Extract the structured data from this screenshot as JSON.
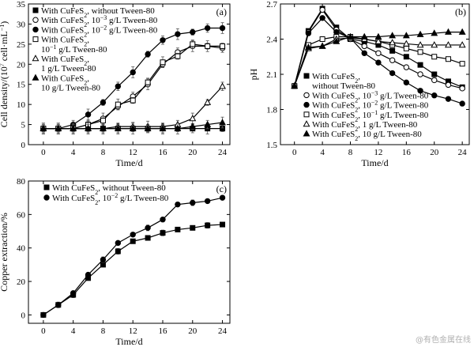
{
  "watermark": "@有色金属在线",
  "chart_data": [
    {
      "id": "a",
      "type": "line",
      "panel_label": "(a)",
      "xlabel": "Time/d",
      "ylabel_prefix": "Cell density/(10",
      "ylabel_sup1": "7",
      "ylabel_mid": " cell·mL",
      "ylabel_sup2": "−1",
      "ylabel_suffix": ")",
      "xlim": [
        -2,
        25
      ],
      "ylim": [
        0,
        35
      ],
      "xticks": [
        "0",
        "4",
        "8",
        "12",
        "16",
        "20",
        "24"
      ],
      "yticks": [
        "0",
        "5",
        "10",
        "15",
        "20",
        "25",
        "30",
        "35"
      ],
      "x": [
        0,
        2,
        4,
        6,
        8,
        10,
        12,
        14,
        16,
        18,
        20,
        22,
        24
      ],
      "legend_position": "top-left",
      "series": [
        {
          "marker": "filled-square",
          "legend_lines": [
            [
              "With CuFeS",
              "2",
              ", without Tween-80"
            ]
          ],
          "values": [
            4.0,
            4.0,
            4.0,
            4.0,
            4.0,
            4.0,
            4.0,
            4.0,
            4.0,
            4.0,
            4.0,
            4.0,
            4.0
          ]
        },
        {
          "marker": "open-circle",
          "legend_lines": [
            [
              "With CuFeS",
              "2",
              ", 10",
              "−3",
              " g/L Tween-80"
            ]
          ],
          "values": [
            4.0,
            4.0,
            4.0,
            5.0,
            6.5,
            9.5,
            12.0,
            15.0,
            20.0,
            23.0,
            24.5,
            24.5,
            24.0
          ]
        },
        {
          "marker": "filled-circle",
          "legend_lines": [
            [
              "With CuFeS",
              "2",
              ", 10",
              "−2",
              " g/L Tween-80"
            ]
          ],
          "values": [
            4.0,
            4.0,
            5.0,
            7.5,
            10.5,
            14.5,
            18.0,
            22.5,
            26.0,
            27.5,
            28.0,
            29.0,
            29.0
          ]
        },
        {
          "marker": "open-square",
          "legend_lines": [
            [
              "With CuFeS",
              "2",
              ","
            ],
            [
              "10",
              "−1",
              " g/L Tween-80"
            ]
          ],
          "values": [
            4.0,
            4.0,
            4.0,
            5.0,
            6.0,
            10.0,
            11.0,
            15.5,
            20.5,
            22.0,
            25.0,
            24.5,
            24.5
          ]
        },
        {
          "marker": "open-triangle",
          "legend_lines": [
            [
              "With CuFeS",
              "2",
              ","
            ],
            [
              "1 g/L Tween-80"
            ]
          ],
          "values": [
            4.0,
            4.0,
            4.0,
            4.0,
            4.0,
            4.5,
            4.5,
            4.5,
            4.5,
            5.0,
            6.5,
            10.5,
            14.5
          ]
        },
        {
          "marker": "filled-triangle",
          "legend_lines": [
            [
              "With CuFeS",
              "2",
              ","
            ],
            [
              "10 g/L Tween-80"
            ]
          ],
          "values": [
            4.0,
            4.0,
            4.0,
            4.0,
            4.0,
            4.0,
            4.0,
            4.0,
            4.0,
            4.0,
            4.5,
            5.0,
            5.5
          ]
        }
      ]
    },
    {
      "id": "b",
      "type": "line",
      "panel_label": "(b)",
      "xlabel": "Time/d",
      "ylabel": "pH",
      "xlim": [
        -2,
        25
      ],
      "ylim": [
        1.5,
        2.7
      ],
      "xticks": [
        "0",
        "4",
        "8",
        "12",
        "16",
        "20",
        "24"
      ],
      "yticks": [
        "1.5",
        "1.8",
        "2.1",
        "2.4",
        "2.7"
      ],
      "x": [
        0,
        2,
        4,
        6,
        8,
        10,
        12,
        14,
        16,
        18,
        20,
        22,
        24
      ],
      "legend_position": "bottom-left",
      "series": [
        {
          "marker": "filled-square",
          "legend_lines": [
            [
              "With CuFeS",
              "2",
              ","
            ],
            [
              "without Tween-80"
            ]
          ],
          "values": [
            2.0,
            2.47,
            2.66,
            2.5,
            2.4,
            2.38,
            2.35,
            2.3,
            2.25,
            2.18,
            2.1,
            2.04,
            1.99
          ]
        },
        {
          "marker": "open-circle",
          "legend_lines": [
            [
              "With CuFeS",
              "2",
              ", 10",
              "−3",
              " g/L Tween-80"
            ]
          ],
          "values": [
            2.0,
            2.46,
            2.65,
            2.48,
            2.4,
            2.34,
            2.28,
            2.22,
            2.16,
            2.1,
            2.05,
            2.01,
            1.98
          ]
        },
        {
          "marker": "filled-circle",
          "legend_lines": [
            [
              "With CuFeS",
              "2",
              ", 10",
              "−2",
              " g/L Tween-80"
            ]
          ],
          "values": [
            2.0,
            2.45,
            2.58,
            2.46,
            2.41,
            2.28,
            2.2,
            2.11,
            2.03,
            1.96,
            1.92,
            1.89,
            1.85
          ]
        },
        {
          "marker": "open-square",
          "legend_lines": [
            [
              "With CuFeS",
              "2",
              ", 10",
              "−1",
              " g/L Tween-80"
            ]
          ],
          "values": [
            2.0,
            2.35,
            2.4,
            2.42,
            2.42,
            2.4,
            2.38,
            2.35,
            2.32,
            2.29,
            2.25,
            2.23,
            2.19
          ]
        },
        {
          "marker": "open-triangle",
          "legend_lines": [
            [
              "With CuFeS",
              "2",
              ", 1 g/L Tween-80"
            ]
          ],
          "values": [
            2.0,
            2.32,
            2.34,
            2.4,
            2.41,
            2.4,
            2.38,
            2.37,
            2.36,
            2.35,
            2.35,
            2.35,
            2.35
          ]
        },
        {
          "marker": "filled-triangle",
          "legend_lines": [
            [
              "With CuFeS",
              "2",
              ", 10 g/L Tween-80"
            ]
          ],
          "values": [
            2.0,
            2.33,
            2.34,
            2.38,
            2.42,
            2.42,
            2.42,
            2.43,
            2.43,
            2.44,
            2.45,
            2.46,
            2.46
          ]
        }
      ]
    },
    {
      "id": "c",
      "type": "line",
      "panel_label": "(c)",
      "xlabel": "Time/d",
      "ylabel": "Copper extraction/%",
      "xlim": [
        -2,
        25
      ],
      "ylim": [
        -5,
        80
      ],
      "xticks": [
        "0",
        "4",
        "8",
        "12",
        "16",
        "20",
        "24"
      ],
      "yticks": [
        "0",
        "20",
        "40",
        "60",
        "80"
      ],
      "x": [
        0,
        2,
        4,
        6,
        8,
        10,
        12,
        14,
        16,
        18,
        20,
        22,
        24
      ],
      "legend_position": "top-left",
      "series": [
        {
          "marker": "filled-square",
          "legend_lines": [
            [
              "With CuFeS",
              "2",
              ", without Tween-80"
            ]
          ],
          "values": [
            0,
            6,
            12,
            22,
            30,
            38,
            44,
            46,
            49,
            51,
            52,
            53.5,
            54
          ]
        },
        {
          "marker": "filled-circle",
          "legend_lines": [
            [
              "With CuFeS",
              "2",
              ", 10",
              "−2",
              " g/L Tween-80"
            ]
          ],
          "values": [
            0,
            6,
            13,
            24,
            33,
            43,
            48,
            52,
            57,
            66,
            67,
            68,
            70
          ]
        }
      ]
    }
  ]
}
